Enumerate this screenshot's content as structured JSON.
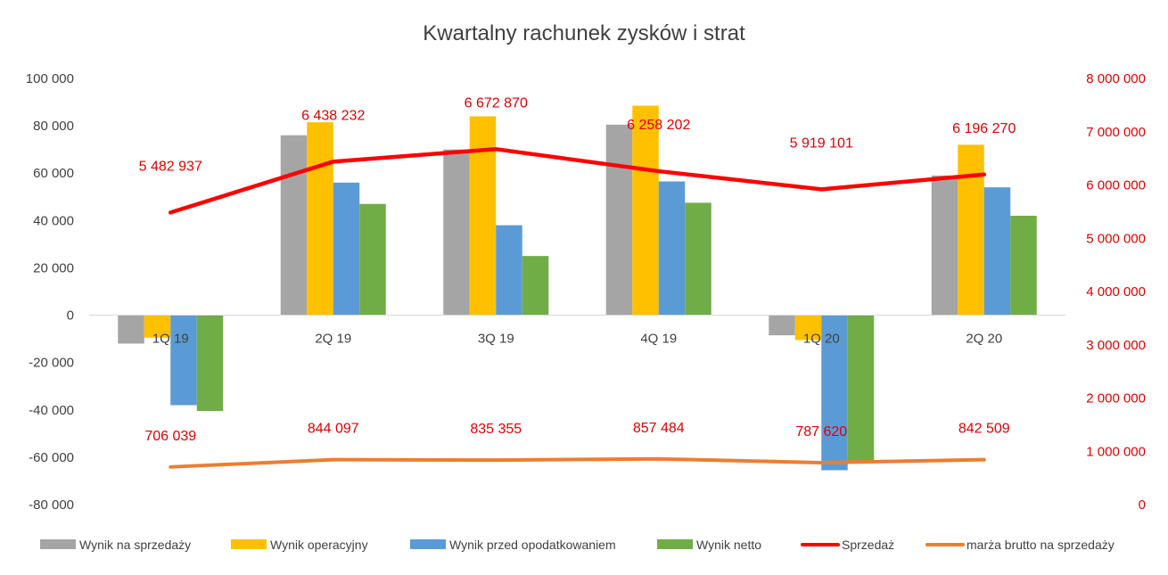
{
  "chart_data": {
    "type": "bar",
    "title": "Kwartalny rachunek zysków i strat",
    "categories": [
      "1Q 19",
      "2Q 19",
      "3Q 19",
      "4Q 19",
      "1Q 20",
      "2Q 20"
    ],
    "y_left": {
      "ylim": [
        -80000,
        100000
      ],
      "ticks": [
        -80000,
        -60000,
        -40000,
        -20000,
        0,
        20000,
        40000,
        60000,
        80000,
        100000
      ],
      "tick_labels": [
        "-80 000",
        "-60 000",
        "-40 000",
        "-20 000",
        "0",
        "20 000",
        "40 000",
        "60 000",
        "80 000",
        "100 000"
      ]
    },
    "y_right": {
      "ylim": [
        0,
        8000000
      ],
      "ticks": [
        0,
        1000000,
        2000000,
        3000000,
        4000000,
        5000000,
        6000000,
        7000000,
        8000000
      ],
      "tick_labels": [
        "0",
        "1 000 000",
        "2 000 000",
        "3 000 000",
        "4 000 000",
        "5 000 000",
        "6 000 000",
        "7 000 000",
        "8 000 000"
      ],
      "color": "#e00000"
    },
    "bar_series": [
      {
        "name": "Wynik na sprzedaży",
        "color": "#a5a5a5",
        "values": [
          -12000,
          76000,
          70000,
          80500,
          -8500,
          59000
        ]
      },
      {
        "name": "Wynik operacyjny",
        "color": "#ffc000",
        "values": [
          -9500,
          81500,
          84000,
          88500,
          -10500,
          72000
        ]
      },
      {
        "name": "Wynik przed opodatkowaniem",
        "color": "#5b9bd5",
        "values": [
          -38000,
          56000,
          38000,
          56500,
          -65500,
          54000
        ]
      },
      {
        "name": "Wynik netto",
        "color": "#70ad47",
        "values": [
          -40500,
          47000,
          25000,
          47500,
          -61500,
          42000
        ]
      }
    ],
    "line_series": [
      {
        "name": "Sprzedaż",
        "color": "#ff0000",
        "axis": "right",
        "values": [
          5482937,
          6438232,
          6672870,
          6258202,
          5919101,
          6196270
        ],
        "labels": [
          "5 482 937",
          "6 438 232",
          "6 672 870",
          "6 258 202",
          "5 919 101",
          "6 196 270"
        ]
      },
      {
        "name": "marża brutto na sprzedaży",
        "color": "#ed7d31",
        "axis": "right",
        "values": [
          706039,
          844097,
          835355,
          857484,
          787620,
          842509
        ],
        "labels": [
          "706 039",
          "844 097",
          "835 355",
          "857 484",
          "787 620",
          "842 509"
        ]
      }
    ],
    "legend_position": "bottom",
    "grid": false
  }
}
